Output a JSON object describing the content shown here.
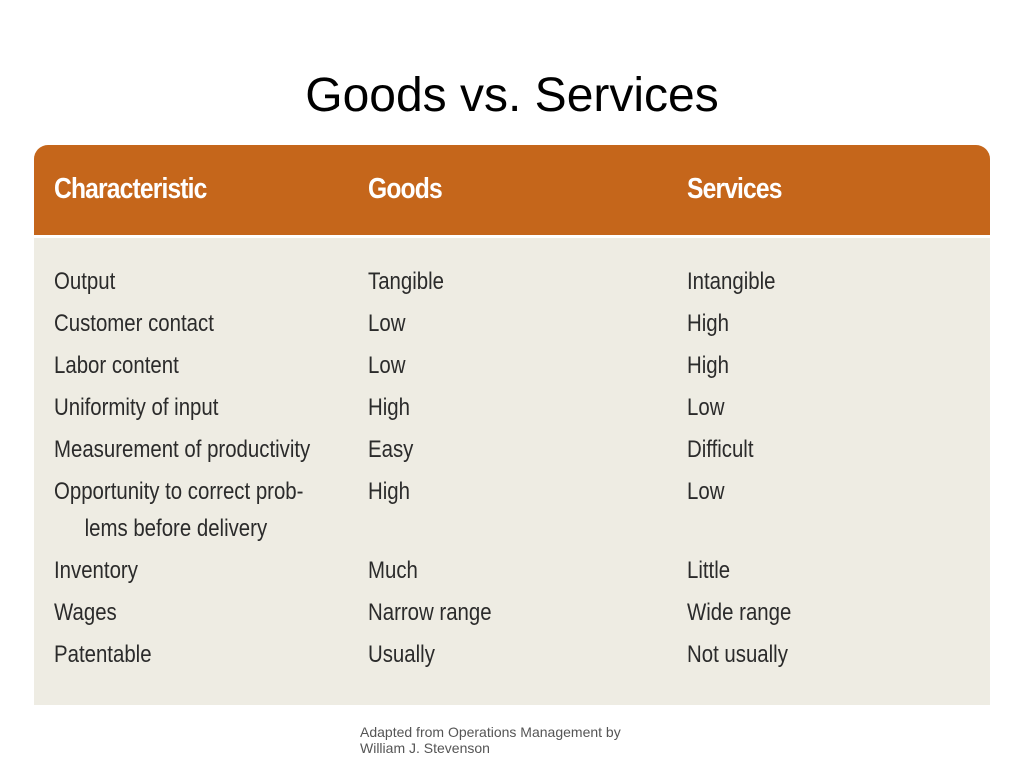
{
  "title": "Goods vs. Services",
  "table": {
    "header": [
      "Characteristic",
      "Goods",
      "Services"
    ],
    "rows": [
      [
        "Output",
        "Tangible",
        "Intangible"
      ],
      [
        "Customer contact",
        "Low",
        "High"
      ],
      [
        "Labor content",
        "Low",
        "High"
      ],
      [
        "Uniformity of input",
        "High",
        "Low"
      ],
      [
        "Measurement of productivity",
        "Easy",
        "Difficult"
      ],
      [
        "Opportunity to correct prob-\nlems before delivery",
        "High",
        "Low"
      ],
      [
        "Inventory",
        "Much",
        "Little"
      ],
      [
        "Wages",
        "Narrow range",
        "Wide range"
      ],
      [
        "Patentable",
        "Usually",
        "Not usually"
      ]
    ]
  },
  "caption": "Adapted from Operations Management by William J. Stevenson"
}
